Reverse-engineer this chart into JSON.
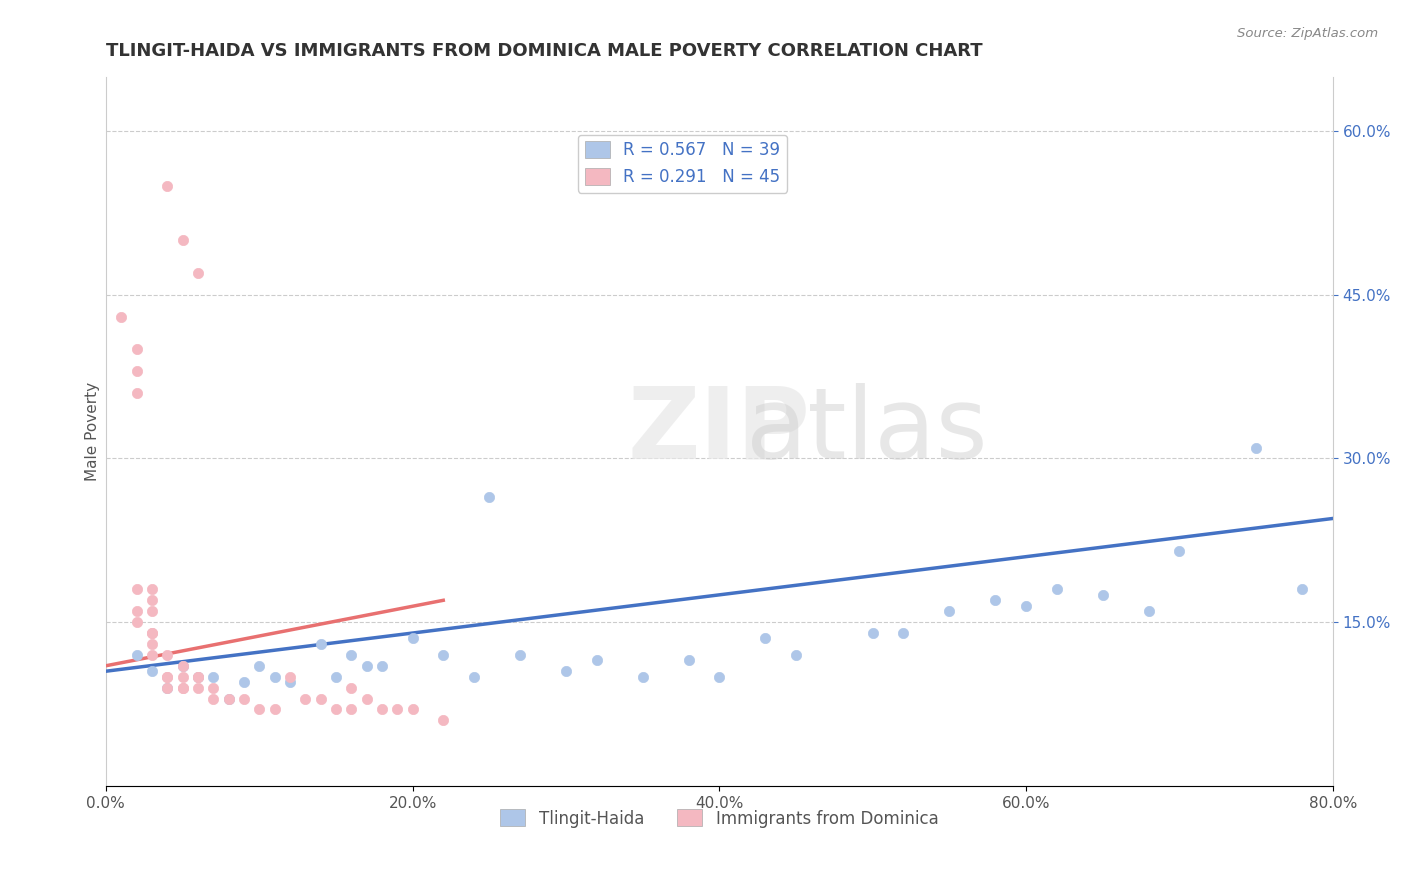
{
  "title": "TLINGIT-HAIDA VS IMMIGRANTS FROM DOMINICA MALE POVERTY CORRELATION CHART",
  "source": "Source: ZipAtlas.com",
  "xlabel": "",
  "ylabel": "Male Poverty",
  "xlim": [
    0.0,
    0.8
  ],
  "ylim": [
    0.0,
    0.65
  ],
  "xticks": [
    0.0,
    0.2,
    0.4,
    0.6,
    0.8
  ],
  "xticklabels": [
    "0.0%",
    "20.0%",
    "40.0%",
    "60.0%",
    "80.0%"
  ],
  "yticks_right": [
    0.15,
    0.3,
    0.45,
    0.6
  ],
  "yticklabels_right": [
    "15.0%",
    "30.0%",
    "45.0%",
    "60.0%"
  ],
  "legend_entries": [
    {
      "label": "R = 0.567   N = 39",
      "color": "#aec6e8"
    },
    {
      "label": "R = 0.291   N = 45",
      "color": "#f4b8c1"
    }
  ],
  "legend_bottom": [
    {
      "label": "Tlingit-Haida",
      "color": "#aec6e8"
    },
    {
      "label": "Immigrants from Dominica",
      "color": "#f4b8c1"
    }
  ],
  "blue_scatter_x": [
    0.02,
    0.03,
    0.04,
    0.05,
    0.06,
    0.07,
    0.08,
    0.09,
    0.1,
    0.11,
    0.12,
    0.14,
    0.15,
    0.16,
    0.17,
    0.18,
    0.2,
    0.22,
    0.24,
    0.25,
    0.27,
    0.3,
    0.32,
    0.35,
    0.38,
    0.4,
    0.43,
    0.45,
    0.5,
    0.52,
    0.55,
    0.58,
    0.6,
    0.62,
    0.65,
    0.68,
    0.7,
    0.75,
    0.78
  ],
  "blue_scatter_y": [
    0.12,
    0.105,
    0.09,
    0.11,
    0.1,
    0.1,
    0.08,
    0.095,
    0.11,
    0.1,
    0.095,
    0.13,
    0.1,
    0.12,
    0.11,
    0.11,
    0.135,
    0.12,
    0.1,
    0.265,
    0.12,
    0.105,
    0.115,
    0.1,
    0.115,
    0.1,
    0.135,
    0.12,
    0.14,
    0.14,
    0.16,
    0.17,
    0.165,
    0.18,
    0.175,
    0.16,
    0.215,
    0.31,
    0.18
  ],
  "pink_scatter_x": [
    0.01,
    0.02,
    0.02,
    0.02,
    0.02,
    0.02,
    0.02,
    0.03,
    0.03,
    0.03,
    0.03,
    0.03,
    0.03,
    0.03,
    0.04,
    0.04,
    0.04,
    0.04,
    0.05,
    0.05,
    0.05,
    0.05,
    0.06,
    0.06,
    0.06,
    0.07,
    0.07,
    0.08,
    0.09,
    0.1,
    0.11,
    0.12,
    0.13,
    0.14,
    0.15,
    0.16,
    0.16,
    0.17,
    0.18,
    0.19,
    0.2,
    0.22,
    0.04,
    0.05,
    0.06
  ],
  "pink_scatter_y": [
    0.43,
    0.38,
    0.4,
    0.36,
    0.18,
    0.16,
    0.15,
    0.14,
    0.14,
    0.13,
    0.16,
    0.17,
    0.18,
    0.12,
    0.12,
    0.1,
    0.1,
    0.09,
    0.09,
    0.09,
    0.1,
    0.11,
    0.1,
    0.09,
    0.1,
    0.09,
    0.08,
    0.08,
    0.08,
    0.07,
    0.07,
    0.1,
    0.08,
    0.08,
    0.07,
    0.07,
    0.09,
    0.08,
    0.07,
    0.07,
    0.07,
    0.06,
    0.55,
    0.5,
    0.47
  ],
  "blue_trend_x": [
    0.0,
    0.8
  ],
  "blue_trend_y": [
    0.105,
    0.245
  ],
  "pink_trend_x": [
    0.0,
    0.22
  ],
  "pink_trend_y": [
    0.11,
    0.17
  ],
  "watermark": "ZIPatlas",
  "background_color": "#ffffff",
  "grid_color": "#cccccc",
  "title_color": "#333333",
  "blue_dot_color": "#aec6e8",
  "pink_dot_color": "#f4b8c1",
  "blue_line_color": "#4472c4",
  "pink_line_color": "#e87070",
  "right_axis_color": "#4472c4",
  "title_fontsize": 13,
  "axis_fontsize": 11,
  "tick_fontsize": 11,
  "legend_fontsize": 12
}
